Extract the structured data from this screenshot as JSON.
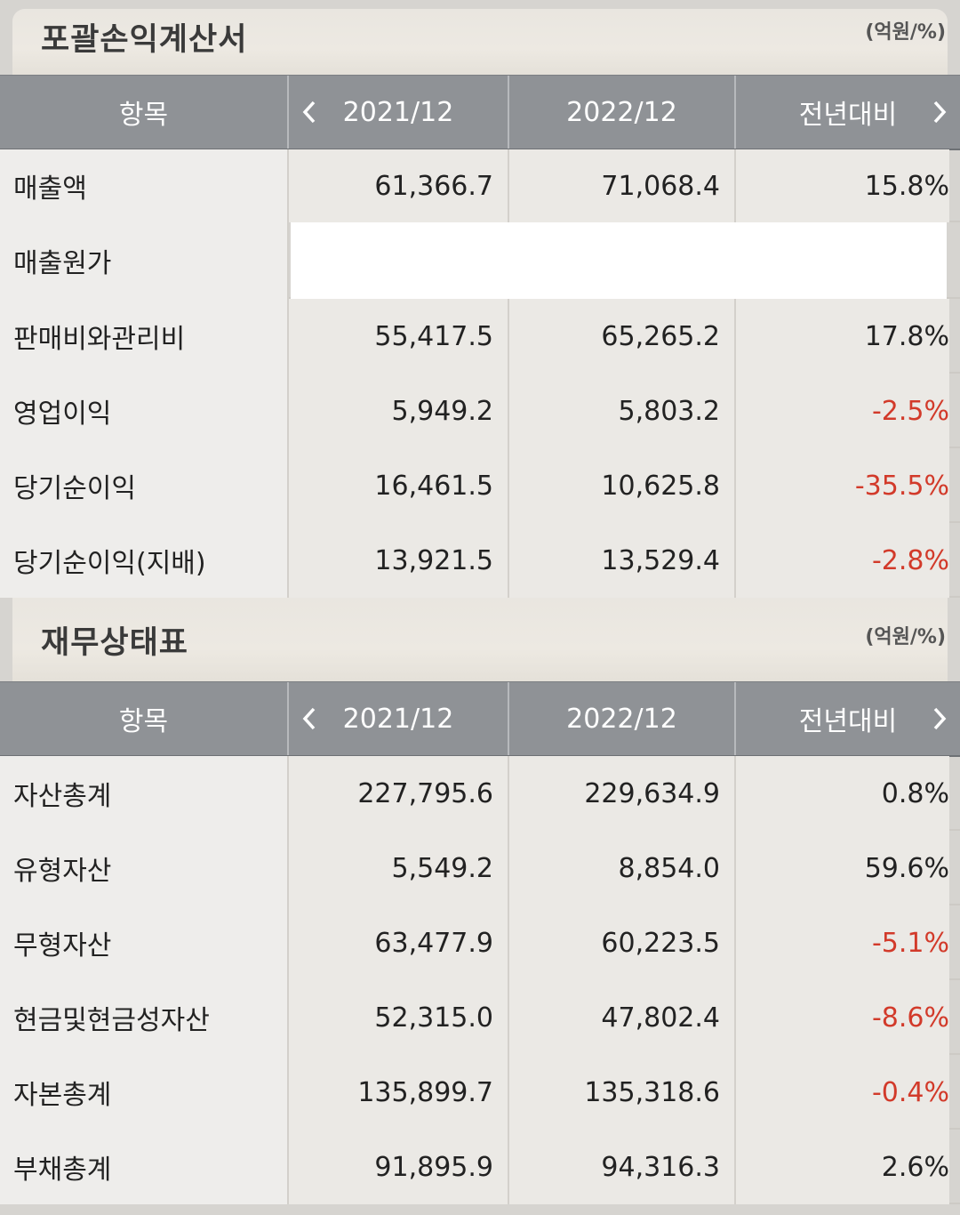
{
  "income": {
    "title": "포괄손익계산서",
    "unit": "(억원/%)",
    "headers": {
      "item": "항목",
      "y1": "2021/12",
      "y2": "2022/12",
      "yoy": "전년대비"
    },
    "rows": [
      {
        "label": "매출액",
        "v1": "61,366.7",
        "v2": "71,068.4",
        "yoy": "15.8%"
      },
      {
        "label": "매출원가",
        "v1": "",
        "v2": "",
        "yoy": ""
      },
      {
        "label": "판매비와관리비",
        "v1": "55,417.5",
        "v2": "65,265.2",
        "yoy": "17.8%"
      },
      {
        "label": "영업이익",
        "v1": "5,949.2",
        "v2": "5,803.2",
        "yoy": "-2.5%"
      },
      {
        "label": "당기순이익",
        "v1": "16,461.5",
        "v2": "10,625.8",
        "yoy": "-35.5%"
      },
      {
        "label": "당기순이익(지배)",
        "v1": "13,921.5",
        "v2": "13,529.4",
        "yoy": "-2.8%"
      }
    ]
  },
  "balance": {
    "title": "재무상태표",
    "unit": "(억원/%)",
    "headers": {
      "item": "항목",
      "y1": "2021/12",
      "y2": "2022/12",
      "yoy": "전년대비"
    },
    "rows": [
      {
        "label": "자산총계",
        "v1": "227,795.6",
        "v2": "229,634.9",
        "yoy": "0.8%"
      },
      {
        "label": "유형자산",
        "v1": "5,549.2",
        "v2": "8,854.0",
        "yoy": "59.6%"
      },
      {
        "label": "무형자산",
        "v1": "63,477.9",
        "v2": "60,223.5",
        "yoy": "-5.1%"
      },
      {
        "label": "현금및현금성자산",
        "v1": "52,315.0",
        "v2": "47,802.4",
        "yoy": "-8.6%"
      },
      {
        "label": "자본총계",
        "v1": "135,899.7",
        "v2": "135,318.6",
        "yoy": "-0.4%"
      },
      {
        "label": "부채총계",
        "v1": "91,895.9",
        "v2": "94,316.3",
        "yoy": "2.6%"
      }
    ]
  },
  "icons": {
    "prev": "chevron-left-icon",
    "next": "chevron-right-icon"
  },
  "colors": {
    "header_bg": "#8f9296",
    "negative": "#d23a2a",
    "row_bg": "#ebe9e5"
  }
}
